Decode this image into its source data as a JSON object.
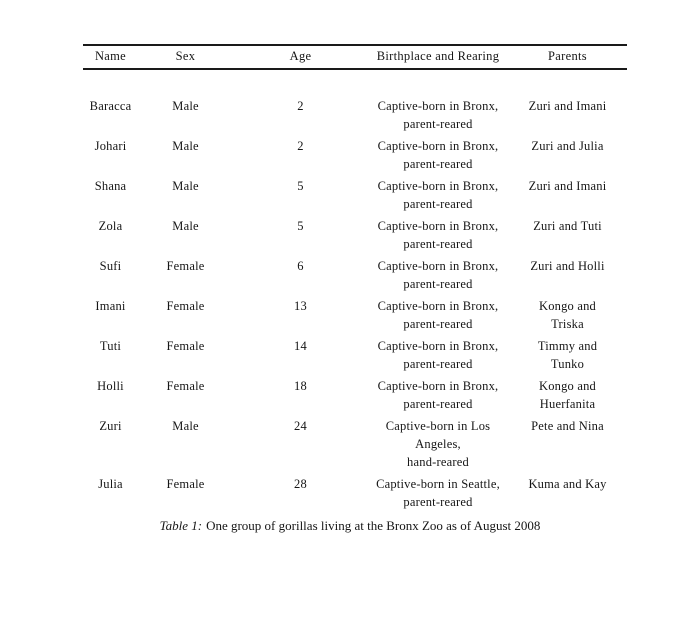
{
  "page": {
    "background_color": "#ffffff",
    "text_color": "#161616",
    "rule_color": "#1a1a1a"
  },
  "table": {
    "columns": [
      "Name",
      "Sex",
      "Age",
      "Birthplace and Rearing",
      "Parents"
    ],
    "rows": [
      [
        "Baracca",
        "Male",
        "2",
        "Captive-born in Bronx,\nparent-reared",
        "Zuri and Imani"
      ],
      [
        "Johari",
        "Male",
        "2",
        "Captive-born in Bronx,\nparent-reared",
        "Zuri and Julia"
      ],
      [
        "Shana",
        "Male",
        "5",
        "Captive-born in Bronx,\nparent-reared",
        "Zuri and Imani"
      ],
      [
        "Zola",
        "Male",
        "5",
        "Captive-born in Bronx,\nparent-reared",
        "Zuri and Tuti"
      ],
      [
        "Sufi",
        "Female",
        "6",
        "Captive-born in Bronx,\nparent-reared",
        "Zuri and Holli"
      ],
      [
        "Imani",
        "Female",
        "13",
        "Captive-born in Bronx,\nparent-reared",
        "Kongo and\nTriska"
      ],
      [
        "Tuti",
        "Female",
        "14",
        "Captive-born in Bronx,\nparent-reared",
        "Timmy and\nTunko"
      ],
      [
        "Holli",
        "Female",
        "18",
        "Captive-born in Bronx,\nparent-reared",
        "Kongo and\nHuerfanita"
      ],
      [
        "Zuri",
        "Male",
        "24",
        "Captive-born in Los Angeles,\nhand-reared",
        "Pete and Nina"
      ],
      [
        "Julia",
        "Female",
        "28",
        "Captive-born in Seattle,\nparent-reared",
        "Kuma and Kay"
      ]
    ]
  },
  "caption": {
    "label": "Table 1:",
    "text": "One group of gorillas living at the Bronx Zoo as of August 2008"
  }
}
